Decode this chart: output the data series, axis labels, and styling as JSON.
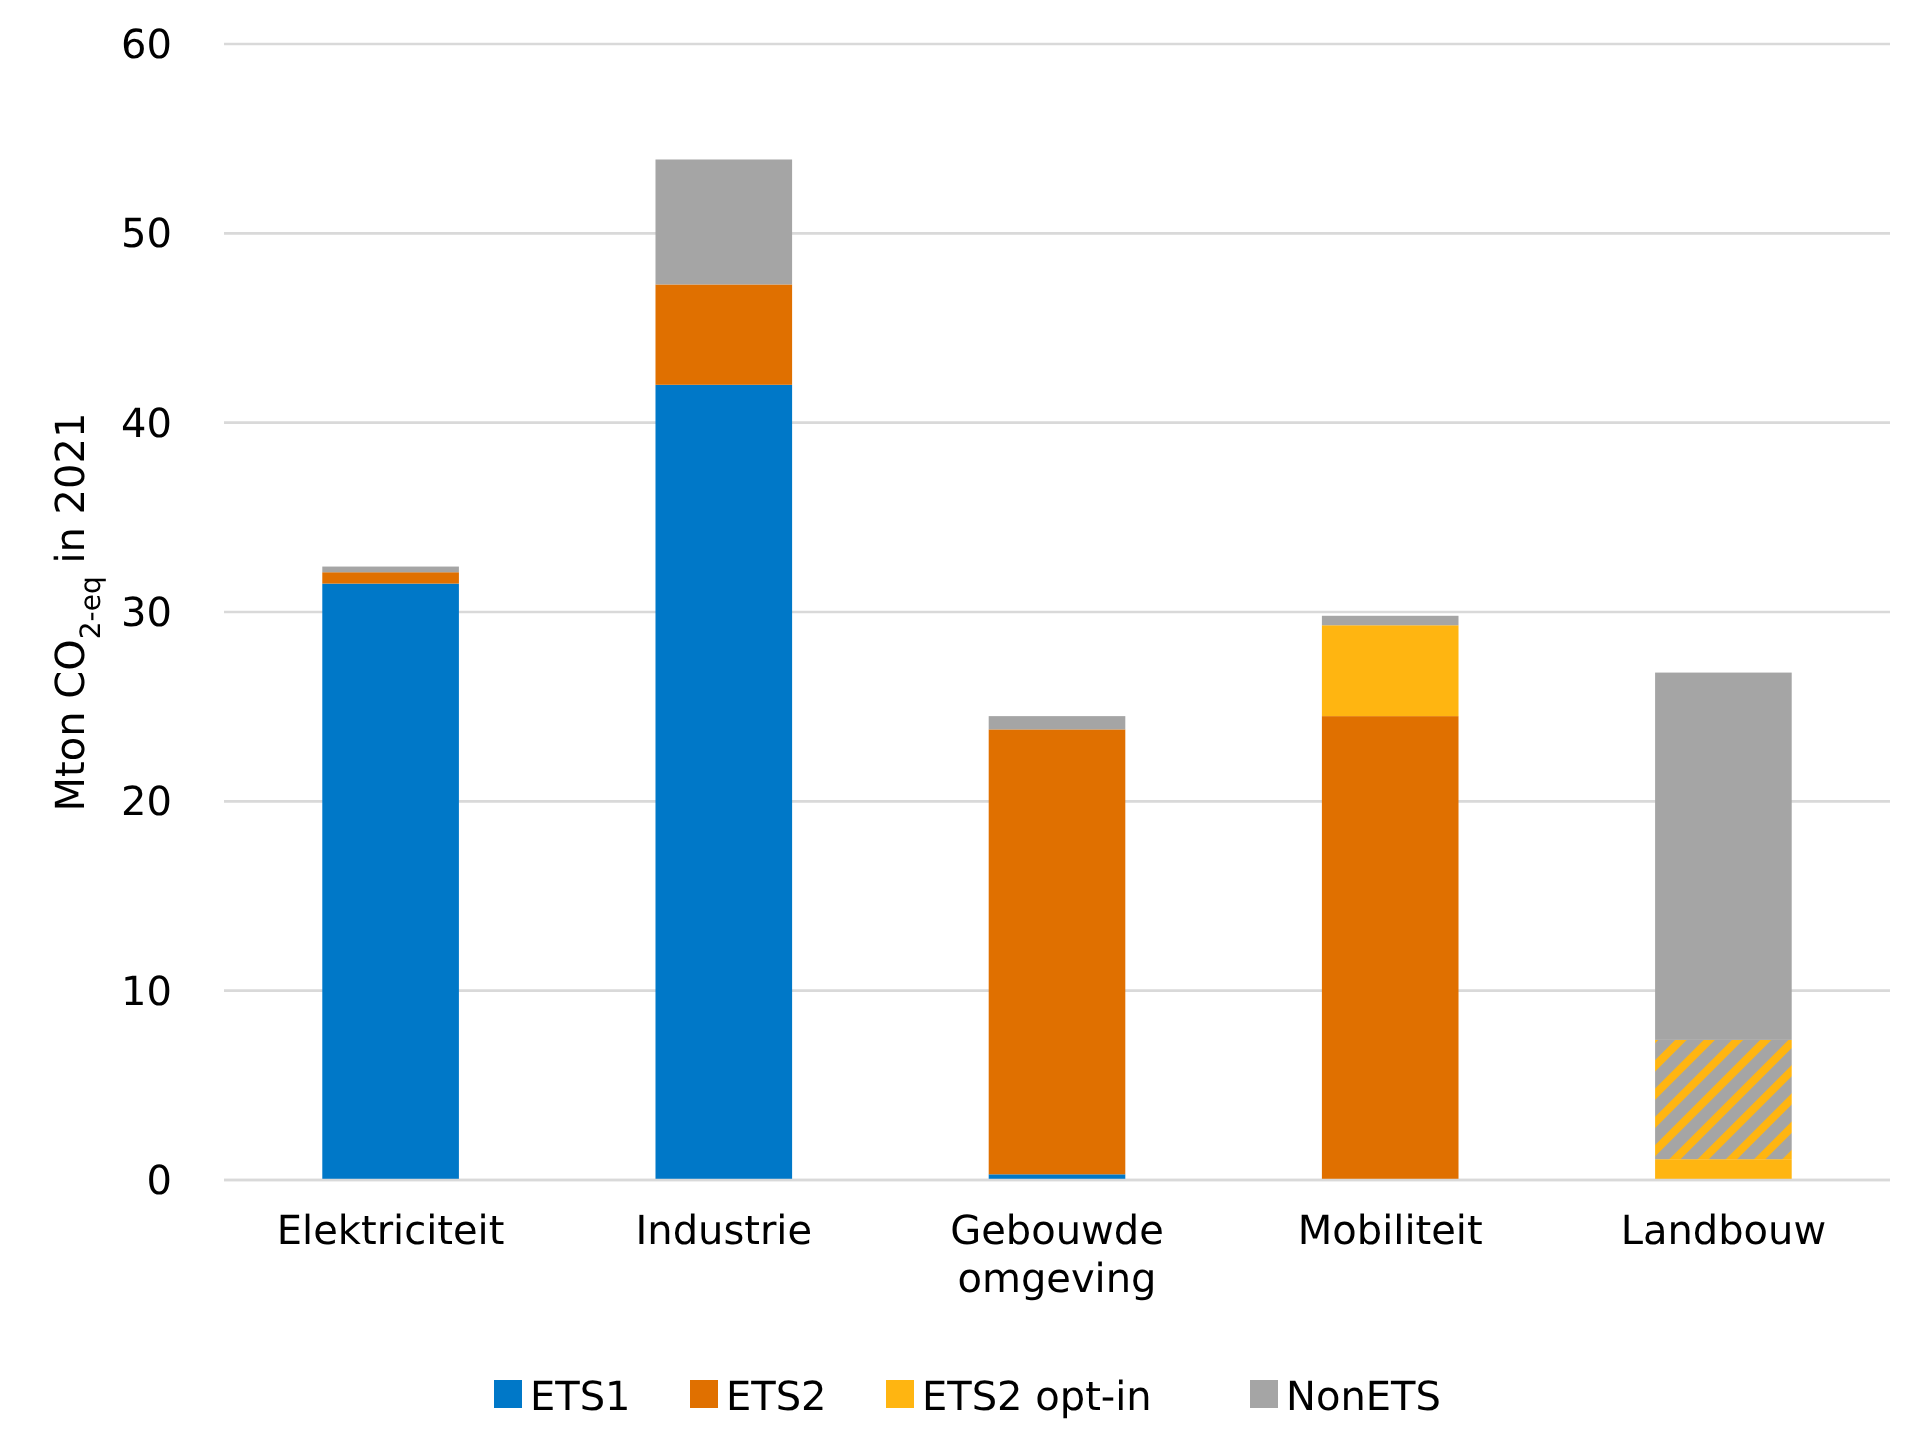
{
  "chart_data": {
    "type": "bar",
    "stacked": true,
    "ylabel": "Mton CO$_{2-eq}$ in 2021",
    "categories": [
      "Elektriciteit",
      "Industrie",
      "Gebouwde omgeving",
      "Mobiliteit",
      "Landbouw"
    ],
    "series": [
      {
        "name": "ETS1",
        "color": "#0078c8",
        "values": [
          31.5,
          42.0,
          0.3,
          null,
          null
        ]
      },
      {
        "name": "ETS2",
        "color": "#e07000",
        "values": [
          0.6,
          5.3,
          23.5,
          24.5,
          null
        ]
      },
      {
        "name": "ETS2 opt-in",
        "color": "#ffb511",
        "values": [
          null,
          null,
          null,
          4.8,
          1.1
        ]
      },
      {
        "color": "#ffb511",
        "values": [
          null,
          null,
          null,
          null,
          6.3
        ]
      },
      {
        "name": "NonETS",
        "color": "#a5a5a5",
        "values": [
          0.3,
          6.6,
          0.7,
          0.5,
          19.4
        ]
      }
    ],
    "ylim": [
      0,
      60
    ],
    "yticks": [
      0,
      10,
      20,
      30,
      40,
      50,
      60
    ],
    "grid": "y",
    "legend": "bottom"
  }
}
